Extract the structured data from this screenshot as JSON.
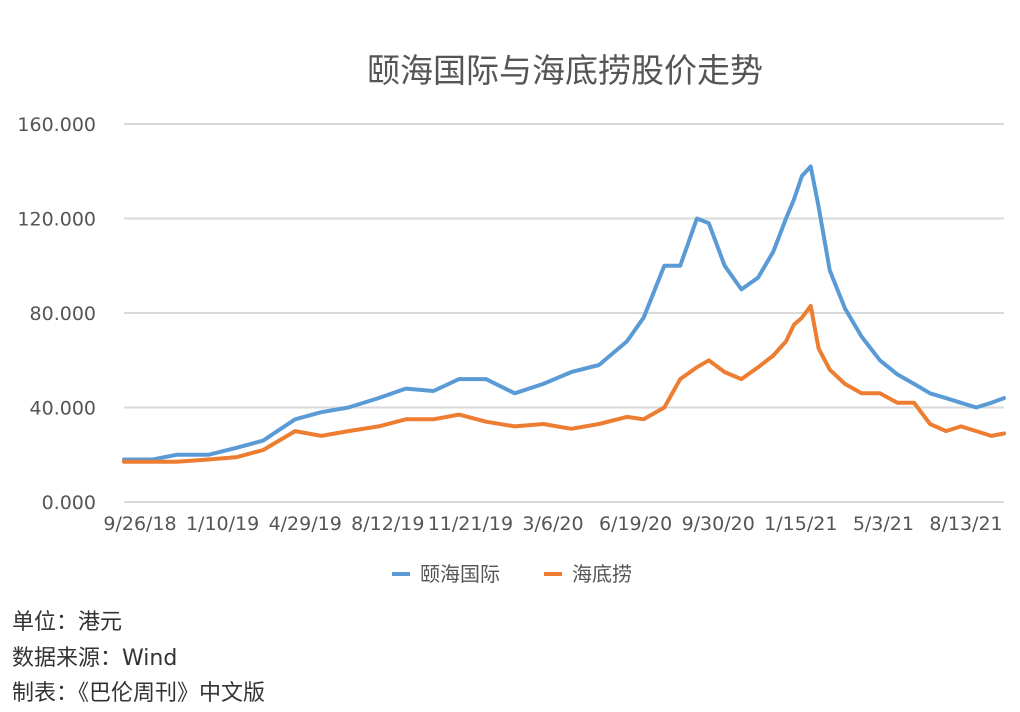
{
  "chart_data": {
    "type": "line",
    "title": "颐海国际与海底捞股价走势",
    "xlabel": "",
    "ylabel": "",
    "ylim": [
      0,
      160
    ],
    "grid": true,
    "legend_position": "bottom",
    "yticks": [
      "160.000",
      "120.000",
      "80.000",
      "40.000",
      "0.000"
    ],
    "xticks": [
      "9/26/18",
      "1/10/19",
      "4/29/19",
      "8/12/19",
      "11/21/19",
      "3/6/20",
      "6/19/20",
      "9/30/20",
      "1/15/21",
      "5/3/21",
      "8/13/21"
    ],
    "x": [
      "2018-09-26",
      "2018-11-01",
      "2018-12-01",
      "2019-01-10",
      "2019-02-15",
      "2019-03-20",
      "2019-04-29",
      "2019-06-01",
      "2019-07-05",
      "2019-08-12",
      "2019-09-15",
      "2019-10-20",
      "2019-11-21",
      "2019-12-25",
      "2020-01-30",
      "2020-03-06",
      "2020-04-10",
      "2020-05-15",
      "2020-06-19",
      "2020-07-10",
      "2020-08-05",
      "2020-08-25",
      "2020-09-15",
      "2020-09-30",
      "2020-10-20",
      "2020-11-10",
      "2020-12-01",
      "2020-12-20",
      "2021-01-05",
      "2021-01-15",
      "2021-01-25",
      "2021-02-05",
      "2021-02-15",
      "2021-03-01",
      "2021-03-20",
      "2021-04-10",
      "2021-05-03",
      "2021-05-25",
      "2021-06-15",
      "2021-07-05",
      "2021-07-25",
      "2021-08-13",
      "2021-09-01",
      "2021-09-20",
      "2021-10-06"
    ],
    "series": [
      {
        "name": "颐海国际",
        "color": "#5B9BD5",
        "values": [
          18,
          18,
          20,
          20,
          23,
          26,
          35,
          38,
          40,
          44,
          48,
          47,
          52,
          52,
          46,
          50,
          55,
          58,
          68,
          78,
          100,
          100,
          120,
          118,
          100,
          90,
          95,
          106,
          120,
          128,
          138,
          142,
          125,
          98,
          82,
          70,
          60,
          54,
          50,
          46,
          44,
          42,
          40,
          42,
          44
        ]
      },
      {
        "name": "海底捞",
        "color": "#ED7D31",
        "values": [
          17,
          17,
          17,
          18,
          19,
          22,
          30,
          28,
          30,
          32,
          35,
          35,
          37,
          34,
          32,
          33,
          31,
          33,
          36,
          35,
          40,
          52,
          57,
          60,
          55,
          52,
          57,
          62,
          68,
          75,
          78,
          83,
          65,
          56,
          50,
          46,
          46,
          42,
          42,
          33,
          30,
          32,
          30,
          28,
          29
        ]
      }
    ]
  },
  "footer": {
    "unit": "单位：港元",
    "source": "数据来源：Wind",
    "credit": "制表：《巴伦周刊》中文版"
  }
}
